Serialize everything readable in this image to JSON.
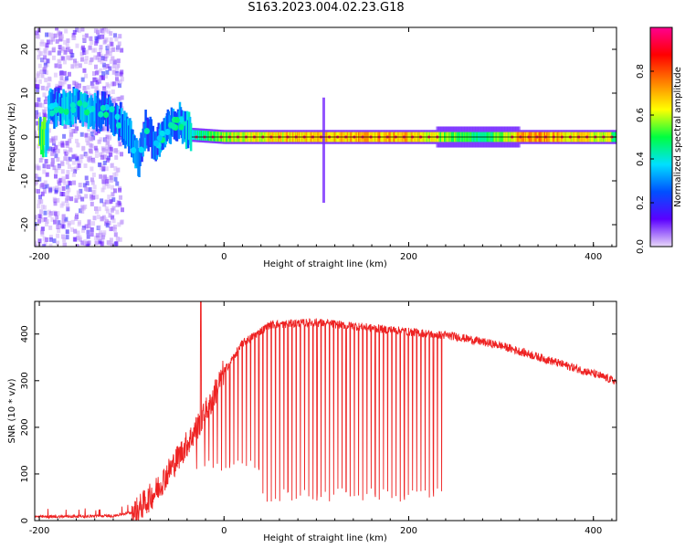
{
  "title": "S163.2023.004.02.23.G18",
  "chart_data": [
    {
      "type": "heatmap",
      "xlabel": "Height of straight line (km)",
      "ylabel": "Frequency (Hz)",
      "xlim": [
        -205,
        425
      ],
      "ylim": [
        -25,
        25
      ],
      "xticks": [
        "-200",
        "0",
        "200",
        "400"
      ],
      "yticks": [
        "20",
        "10",
        "0",
        "-10",
        "-20"
      ],
      "colorbar": {
        "label": "Normalized spectral amplitude",
        "range": [
          0,
          1
        ],
        "ticks": [
          "0.0",
          "0.2",
          "0.4",
          "0.6",
          "0.8"
        ],
        "colors": [
          "#e8d8f8",
          "#5b00ff",
          "#0050ff",
          "#00e0ff",
          "#00ff40",
          "#ffff00",
          "#ff8000",
          "#ff0000",
          "#ff0090"
        ]
      },
      "ridge": [
        {
          "x": -190,
          "f": 6.5,
          "a": 0.3
        },
        {
          "x": -160,
          "f": 6.8,
          "a": 0.35
        },
        {
          "x": -145,
          "f": 6.0,
          "a": 0.35
        },
        {
          "x": -125,
          "f": 5.8,
          "a": 0.3
        },
        {
          "x": -110,
          "f": 3.0,
          "a": 0.3
        },
        {
          "x": -100,
          "f": -1.0,
          "a": 0.3
        },
        {
          "x": -92,
          "f": -5.0,
          "a": 0.3
        },
        {
          "x": -85,
          "f": 2.0,
          "a": 0.3
        },
        {
          "x": -75,
          "f": -2.0,
          "a": 0.3
        },
        {
          "x": -62,
          "f": 1.5,
          "a": 0.3
        },
        {
          "x": -48,
          "f": 3.5,
          "a": 0.3
        },
        {
          "x": -35,
          "f": 0.5,
          "a": 0.4
        },
        {
          "x": 0,
          "f": 0.0,
          "a": 0.6
        },
        {
          "x": 100,
          "f": 0.0,
          "a": 0.7
        },
        {
          "x": 200,
          "f": 0.0,
          "a": 0.7
        },
        {
          "x": 280,
          "f": 0.0,
          "a": 0.45
        },
        {
          "x": 330,
          "f": 0.0,
          "a": 0.75
        },
        {
          "x": 420,
          "f": 0.0,
          "a": 0.6
        }
      ]
    },
    {
      "type": "line",
      "xlabel": "Height of straight line (km)",
      "ylabel": "SNR (10 * v/v)",
      "xlim": [
        -205,
        425
      ],
      "ylim": [
        0,
        470
      ],
      "xticks": [
        "-200",
        "0",
        "200",
        "400"
      ],
      "yticks": [
        "0",
        "100",
        "200",
        "300",
        "400"
      ],
      "series_color": "#ee2222",
      "envelope": [
        {
          "x": -205,
          "y": 8
        },
        {
          "x": -120,
          "y": 10
        },
        {
          "x": -95,
          "y": 20
        },
        {
          "x": -75,
          "y": 60
        },
        {
          "x": -55,
          "y": 120
        },
        {
          "x": -35,
          "y": 180
        },
        {
          "x": -15,
          "y": 250
        },
        {
          "x": 0,
          "y": 320
        },
        {
          "x": 20,
          "y": 380
        },
        {
          "x": 50,
          "y": 420
        },
        {
          "x": 100,
          "y": 425
        },
        {
          "x": 150,
          "y": 415
        },
        {
          "x": 200,
          "y": 405
        },
        {
          "x": 250,
          "y": 395
        },
        {
          "x": 300,
          "y": 375
        },
        {
          "x": 350,
          "y": 345
        },
        {
          "x": 400,
          "y": 315
        },
        {
          "x": 425,
          "y": 298
        }
      ],
      "dips": {
        "x_start": -30,
        "x_end": 240,
        "spacing": 4.5,
        "min_y": 40
      }
    }
  ]
}
